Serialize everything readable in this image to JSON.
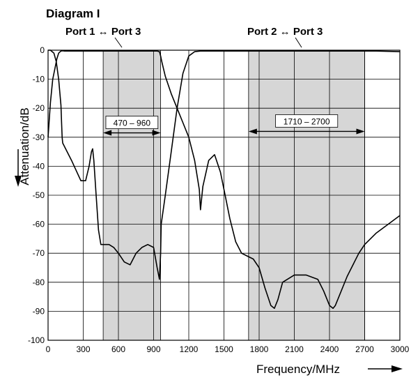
{
  "chart_data": {
    "type": "line",
    "title": "Diagram I",
    "xlabel": "Frequency/MHz",
    "ylabel": "Attenuation/dB",
    "xlim": [
      0,
      3000
    ],
    "ylim": [
      -100,
      0
    ],
    "xticks": [
      "0",
      "300",
      "600",
      "900",
      "1200",
      "1500",
      "1800",
      "2100",
      "2400",
      "2700",
      "3000"
    ],
    "yticks": [
      "0",
      "-10",
      "-20",
      "-30",
      "-40",
      "-50",
      "-60",
      "-70",
      "-80",
      "-90",
      "-100"
    ],
    "grid": true,
    "bands": [
      {
        "label": "470 – 960",
        "x0": 470,
        "x1": 960
      },
      {
        "label": "1710 – 2700",
        "x0": 1710,
        "x1": 2700
      }
    ],
    "series": [
      {
        "name": "Port 1 ↔ Port 3",
        "x": [
          0,
          20,
          40,
          60,
          75,
          90,
          110,
          125,
          140,
          170,
          200,
          230,
          260,
          300,
          340,
          380,
          420,
          470,
          500,
          560,
          600,
          650,
          700,
          740,
          780,
          820,
          860,
          900,
          930,
          950,
          960,
          970,
          1000,
          1050,
          1100,
          1150,
          1200,
          1250,
          1290,
          1300,
          1320,
          1370,
          1420,
          1470,
          1500,
          1550,
          1600,
          1650,
          1700,
          1750,
          1800,
          1850,
          1900,
          1930,
          1960,
          2000,
          2100,
          2200,
          2300,
          2350,
          2400,
          2430,
          2450,
          2480,
          2550,
          2650,
          2700,
          2800,
          2900,
          3000
        ],
        "y": [
          -30,
          -18,
          -10,
          -6,
          -3,
          -1,
          -0.3,
          -0.2,
          -0.3,
          -0.3,
          -0.3,
          -0.3,
          -0.3,
          -0.3,
          -0.3,
          -0.3,
          -0.3,
          -0.3,
          -0.3,
          -0.3,
          -0.3,
          -0.3,
          -0.3,
          -0.3,
          -0.3,
          -0.3,
          -0.3,
          -0.3,
          -0.3,
          -0.5,
          -2,
          -4,
          -9,
          -15,
          -20,
          -25,
          -30,
          -38,
          -48,
          -55,
          -47,
          -38,
          -36,
          -42,
          -48,
          -58,
          -66,
          -70,
          -71,
          -72,
          -75,
          -82,
          -88,
          -89,
          -86,
          -80,
          -77.5,
          -77.5,
          -79,
          -83,
          -88,
          -89,
          -88,
          -85,
          -78,
          -70,
          -67,
          -63,
          -60,
          -57
        ]
      },
      {
        "name": "Port 2 ↔ Port 3",
        "x": [
          0,
          20,
          50,
          70,
          90,
          110,
          115,
          120,
          125,
          200,
          280,
          320,
          350,
          370,
          380,
          390,
          410,
          430,
          450,
          480,
          520,
          560,
          600,
          650,
          700,
          750,
          800,
          850,
          900,
          930,
          950,
          960,
          965,
          1000,
          1050,
          1100,
          1150,
          1200,
          1250,
          1300,
          1350,
          1400,
          1500,
          1600,
          1700,
          1800,
          1900,
          2000,
          2200,
          2400,
          2600,
          2800,
          3000
        ],
        "y": [
          0,
          0,
          -1,
          -4,
          -10,
          -19,
          -25,
          -30,
          -32,
          -38,
          -45,
          -45,
          -40,
          -35,
          -34,
          -38,
          -50,
          -62,
          -67,
          -67,
          -67,
          -68,
          -70,
          -73,
          -74,
          -70,
          -68,
          -67,
          -68,
          -75,
          -79,
          -70,
          -60,
          -50,
          -35,
          -20,
          -8,
          -2,
          -0.5,
          -0.3,
          -0.3,
          -0.3,
          -0.3,
          -0.3,
          -0.3,
          -0.3,
          -0.3,
          -0.3,
          -0.3,
          -0.3,
          -0.3,
          -0.3,
          -0.5
        ]
      }
    ]
  }
}
